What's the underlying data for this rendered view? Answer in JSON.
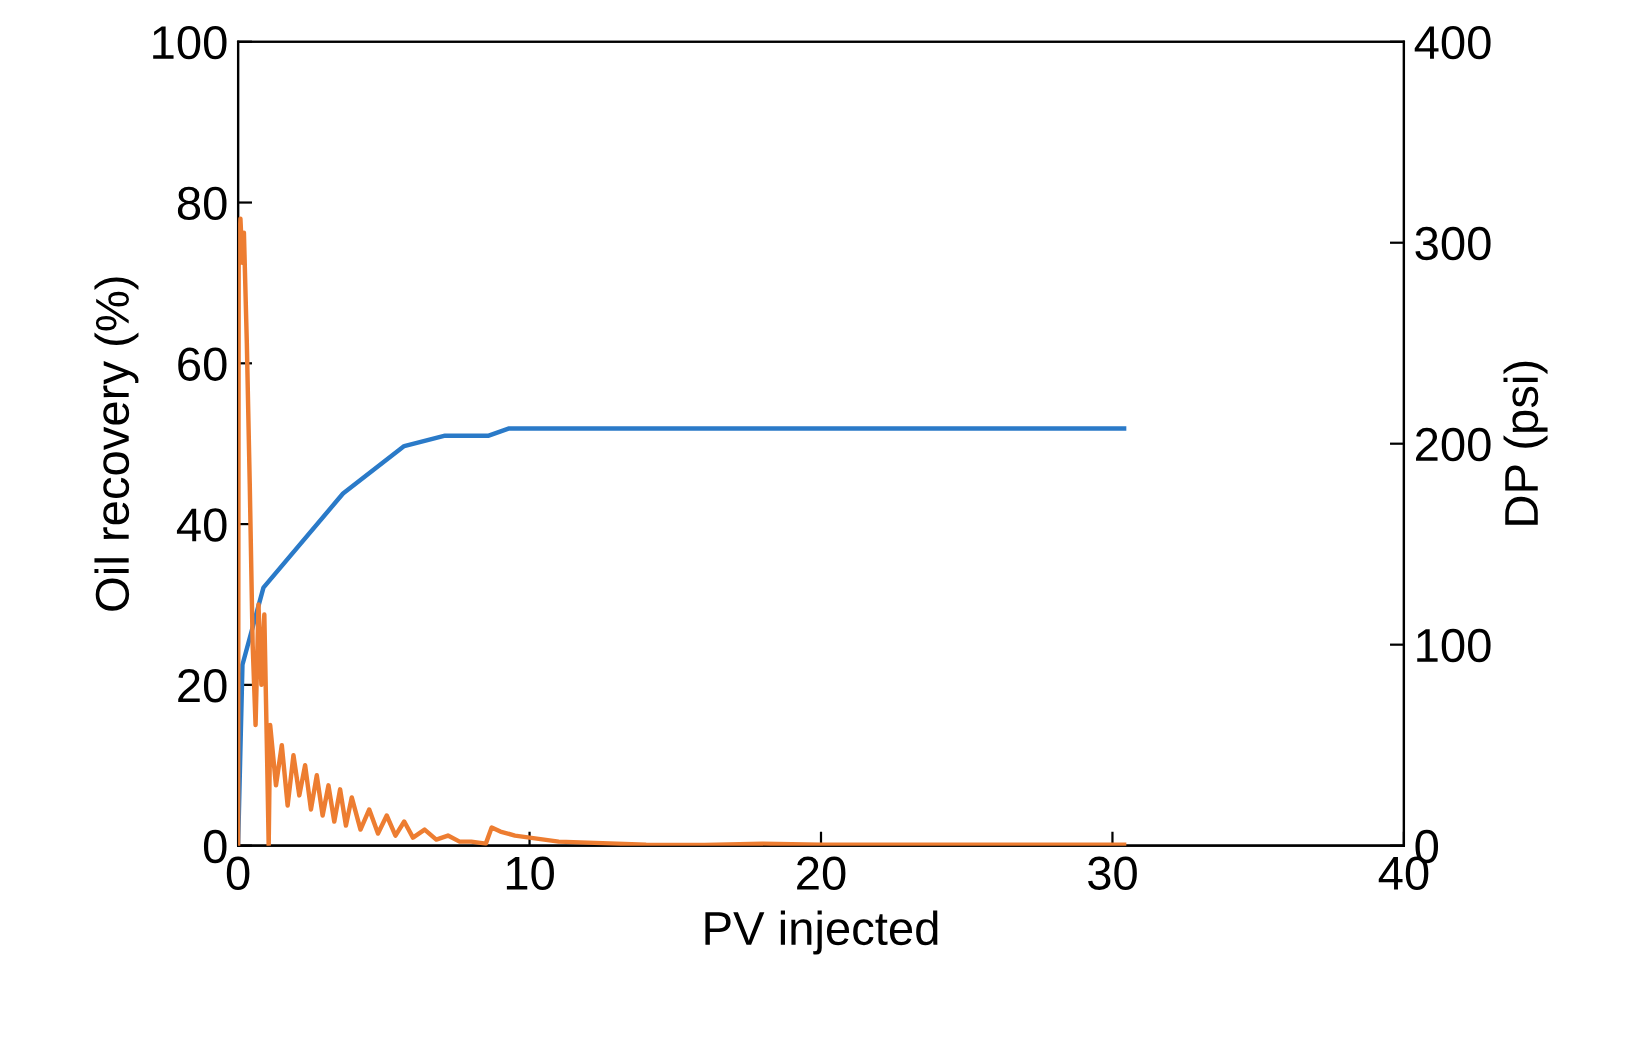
{
  "chart_data": {
    "type": "line",
    "xlabel": "PV injected",
    "ylabel": "Oil recovery (%)",
    "y2label": "DP (psi)",
    "xlim": [
      0,
      40
    ],
    "xticks": [
      0,
      10,
      20,
      30,
      40
    ],
    "ylim": [
      0,
      100
    ],
    "yticks": [
      0,
      20,
      40,
      60,
      80,
      100
    ],
    "y2lim": [
      0,
      400
    ],
    "y2ticks": [
      0,
      100,
      200,
      300,
      400
    ],
    "grid": false,
    "legend": false,
    "marker": "none",
    "line_style": "solid",
    "series": [
      {
        "color": "#ed7d31",
        "axis": "y2",
        "x": [
          0,
          0.02,
          0.08,
          0.15,
          0.2,
          0.3,
          0.4,
          0.5,
          0.6,
          0.7,
          0.8,
          0.9,
          1.0,
          1.05,
          1.1,
          1.3,
          1.5,
          1.7,
          1.9,
          2.1,
          2.3,
          2.5,
          2.7,
          2.9,
          3.1,
          3.3,
          3.5,
          3.7,
          3.9,
          4.2,
          4.5,
          4.8,
          5.1,
          5.4,
          5.7,
          6.0,
          6.4,
          6.8,
          7.2,
          7.6,
          8.0,
          8.5,
          8.7,
          9.0,
          9.5,
          10,
          11,
          12,
          14,
          16,
          18,
          20,
          25,
          30.4
        ],
        "values": [
          0,
          290,
          312,
          290,
          305,
          250,
          180,
          100,
          60,
          120,
          80,
          115,
          40,
          0,
          60,
          30,
          50,
          20,
          45,
          25,
          40,
          18,
          35,
          15,
          30,
          12,
          28,
          10,
          24,
          8,
          18,
          6,
          15,
          5,
          12,
          4,
          8,
          3,
          5,
          2,
          2,
          1,
          9,
          7,
          5,
          4,
          2,
          1.5,
          0.5,
          0.3,
          1,
          0.5,
          0.5,
          0.5
        ]
      },
      {
        "color": "#2a7ac8",
        "x": [
          0,
          0.15,
          0.87,
          3.6,
          5.7,
          7.1,
          8.6,
          9.3,
          30.4
        ],
        "values": [
          0,
          22.5,
          32.1,
          43.8,
          49.7,
          51,
          51,
          51.9,
          51.9
        ]
      }
    ]
  }
}
